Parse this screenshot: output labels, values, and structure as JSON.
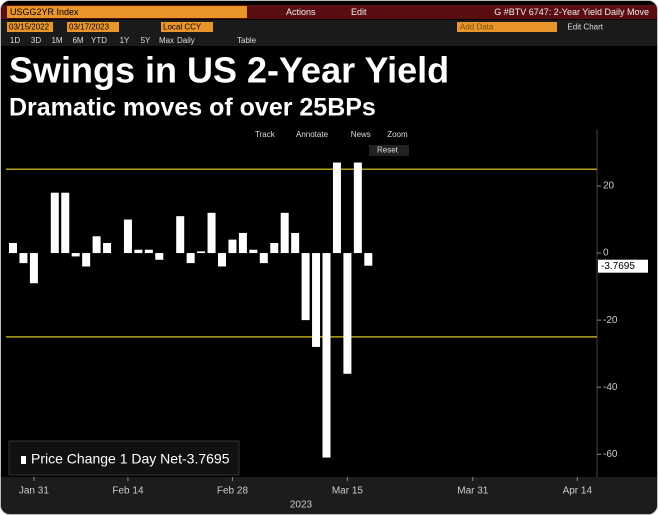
{
  "ui": {
    "ticker": "USGG2YR Index",
    "menus": [
      "Actions",
      "Edit"
    ],
    "window_title": "G #BTV 6747: 2-Year Yield Daily Move",
    "start_date": "03/15/2022",
    "end_date": "03/17/2023",
    "currency": "Local CCY",
    "add_data": "Add Data",
    "edit_chart": "Edit Chart",
    "periods": [
      "1D",
      "3D",
      "1M",
      "6M",
      "YTD",
      "1Y",
      "5Y",
      "Max"
    ],
    "frequency": "Daily",
    "table": "Table",
    "toolbar": [
      "Track",
      "Annotate",
      "News",
      "Zoom"
    ],
    "reset": "Reset"
  },
  "chart_data": {
    "type": "bar",
    "title": "Swings in US 2-Year Yield",
    "subtitle": "Dramatic moves of over 25BPs",
    "x_label": "2023",
    "categories": [
      null,
      null,
      "Jan 31",
      null,
      null,
      null,
      null,
      null,
      null,
      null,
      null,
      "Feb 14",
      null,
      null,
      null,
      null,
      null,
      null,
      null,
      null,
      null,
      "Feb 28",
      null,
      null,
      null,
      null,
      null,
      null,
      null,
      null,
      null,
      null,
      "Mar 15",
      null,
      null,
      null,
      null,
      null,
      null,
      null,
      null,
      null,
      null,
      null,
      "Mar 31",
      null,
      null,
      null,
      null,
      null,
      null,
      null,
      null,
      null,
      "Apr 14",
      null
    ],
    "series": [
      {
        "name": "Price Change 1 Day Net",
        "color": "#ffffff",
        "values": [
          3,
          -3,
          -9,
          null,
          18,
          18,
          -1,
          -4,
          5,
          3,
          null,
          10,
          1,
          1,
          -2,
          null,
          11,
          -3,
          0.5,
          12,
          -4,
          4,
          6,
          1,
          -3,
          3,
          12,
          6,
          -20,
          -28,
          -61,
          27,
          -36,
          27,
          -3.7695,
          null,
          null,
          null,
          null,
          null,
          null,
          null,
          null,
          null,
          null,
          null,
          null,
          null,
          null,
          null,
          null,
          null,
          null,
          null,
          null,
          null
        ]
      }
    ],
    "ylim": [
      -65,
      37
    ],
    "yticks": [
      -60,
      -40,
      -20,
      0,
      20
    ],
    "grid": false,
    "reference_lines": [
      25,
      -25
    ],
    "reference_color": "#b5a21c"
  }
}
